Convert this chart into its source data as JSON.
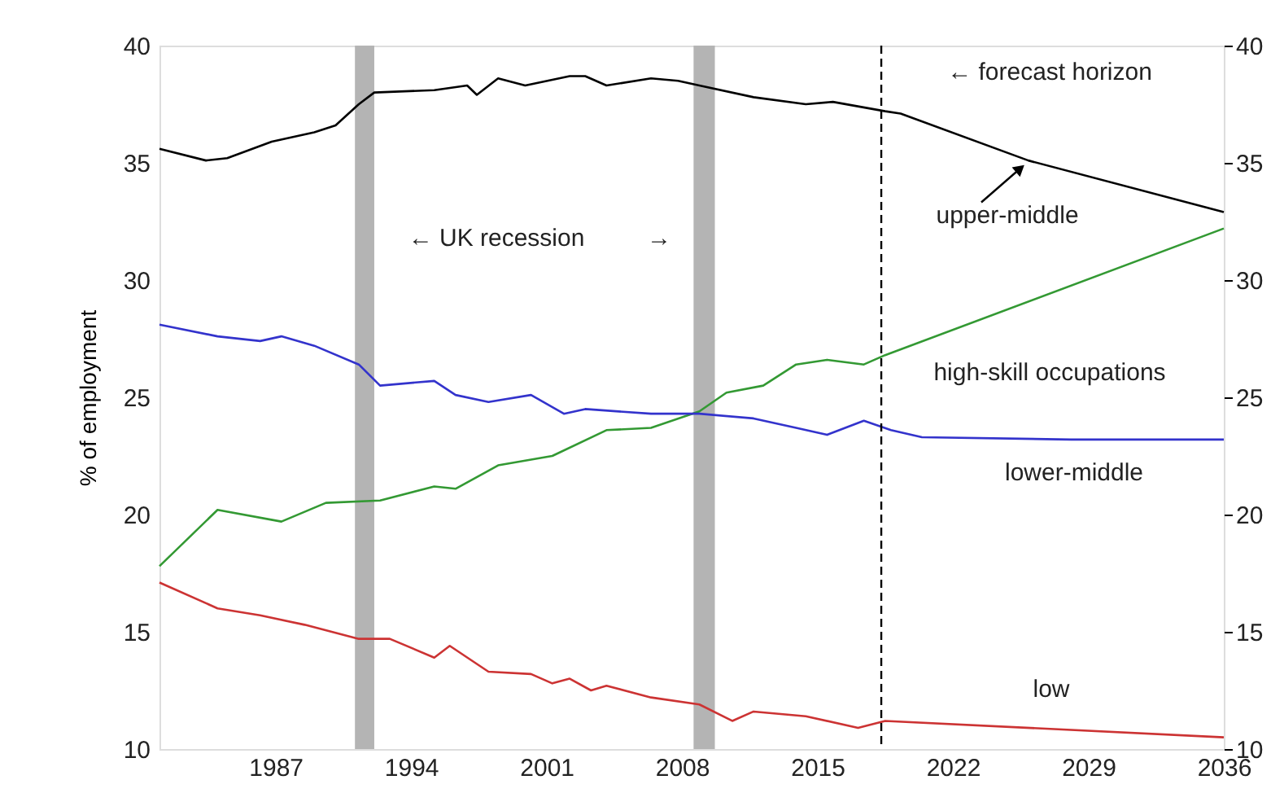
{
  "chart_data": {
    "type": "line",
    "ylabel": "% of employment",
    "xlim": [
      1981,
      2036
    ],
    "xticks": [
      1987,
      1994,
      2001,
      2008,
      2015,
      2022,
      2029,
      2036
    ],
    "ylim": [
      10,
      40
    ],
    "yticks": [
      10,
      15,
      20,
      25,
      30,
      35,
      40
    ],
    "y2lim": [
      10,
      40
    ],
    "y2ticks": [
      10,
      15,
      20,
      25,
      30,
      35,
      40
    ],
    "grid": false,
    "marker": "none",
    "line_style": "solid",
    "series": [
      {
        "name": "upper-middle",
        "color": "#000000",
        "x": [
          1981.0,
          1983.4,
          1984.5,
          1986.8,
          1989.0,
          1990.1,
          1991.3,
          1992.1,
          1995.2,
          1996.9,
          1997.4,
          1998.5,
          1999.9,
          2002.2,
          2003.0,
          2004.1,
          2006.4,
          2007.8,
          2008.9,
          2011.7,
          2014.4,
          2015.8,
          2018.5,
          2019.3,
          2025.9,
          2036
        ],
        "values": [
          35.6,
          35.1,
          35.2,
          35.9,
          36.3,
          36.6,
          37.5,
          38.0,
          38.1,
          38.3,
          37.9,
          38.6,
          38.3,
          38.7,
          38.7,
          38.3,
          38.6,
          38.5,
          38.3,
          37.8,
          37.5,
          37.6,
          37.2,
          37.1,
          35.1,
          32.9
        ]
      },
      {
        "name": "high-skill occupations",
        "color": "#339933",
        "x": [
          1981.0,
          1984.0,
          1987.3,
          1989.6,
          1992.4,
          1995.2,
          1996.3,
          1998.5,
          2001.3,
          2004.1,
          2006.4,
          2008.9,
          2010.3,
          2012.2,
          2013.9,
          2015.5,
          2017.4,
          2018.5,
          2036
        ],
        "values": [
          17.8,
          20.2,
          19.7,
          20.5,
          20.6,
          21.2,
          21.1,
          22.1,
          22.5,
          23.6,
          23.7,
          24.4,
          25.2,
          25.5,
          26.4,
          26.6,
          26.4,
          26.8,
          32.2
        ]
      },
      {
        "name": "lower-middle",
        "color": "#3333cc",
        "x": [
          1981.0,
          1984.0,
          1986.2,
          1987.3,
          1989.0,
          1991.3,
          1992.4,
          1995.2,
          1996.3,
          1998.0,
          2000.2,
          2001.9,
          2003.0,
          2006.4,
          2008.9,
          2011.7,
          2013.9,
          2015.5,
          2017.4,
          2018.8,
          2020.4,
          2028.1,
          2036
        ],
        "values": [
          28.1,
          27.6,
          27.4,
          27.6,
          27.2,
          26.4,
          25.5,
          25.7,
          25.1,
          24.8,
          25.1,
          24.3,
          24.5,
          24.3,
          24.3,
          24.1,
          23.7,
          23.4,
          24.0,
          23.6,
          23.3,
          23.2,
          23.2
        ]
      },
      {
        "name": "low",
        "color": "#cc3333",
        "x": [
          1981.0,
          1984.0,
          1986.2,
          1988.5,
          1991.3,
          1992.9,
          1995.2,
          1996.0,
          1998.0,
          2000.2,
          2001.3,
          2002.2,
          2003.3,
          2004.1,
          2006.4,
          2008.9,
          2010.6,
          2011.7,
          2014.4,
          2017.1,
          2018.5,
          2036
        ],
        "values": [
          17.1,
          16.0,
          15.7,
          15.3,
          14.7,
          14.7,
          13.9,
          14.4,
          13.3,
          13.2,
          12.8,
          13.0,
          12.5,
          12.7,
          12.2,
          11.9,
          11.2,
          11.6,
          11.4,
          10.9,
          11.2,
          10.5
        ]
      }
    ],
    "bands": [
      {
        "axis": "x",
        "from": 1991.1,
        "to": 1992.1,
        "color": "#b4b4b4"
      },
      {
        "axis": "x",
        "from": 2008.6,
        "to": 2009.7,
        "color": "#b4b4b4"
      }
    ],
    "ref_lines": [
      {
        "axis": "x",
        "value": 2018.3,
        "color": "#000000",
        "line_style": "dashed"
      }
    ],
    "annotations": [
      "← UK recession",
      "→",
      "← forecast horizon"
    ]
  }
}
